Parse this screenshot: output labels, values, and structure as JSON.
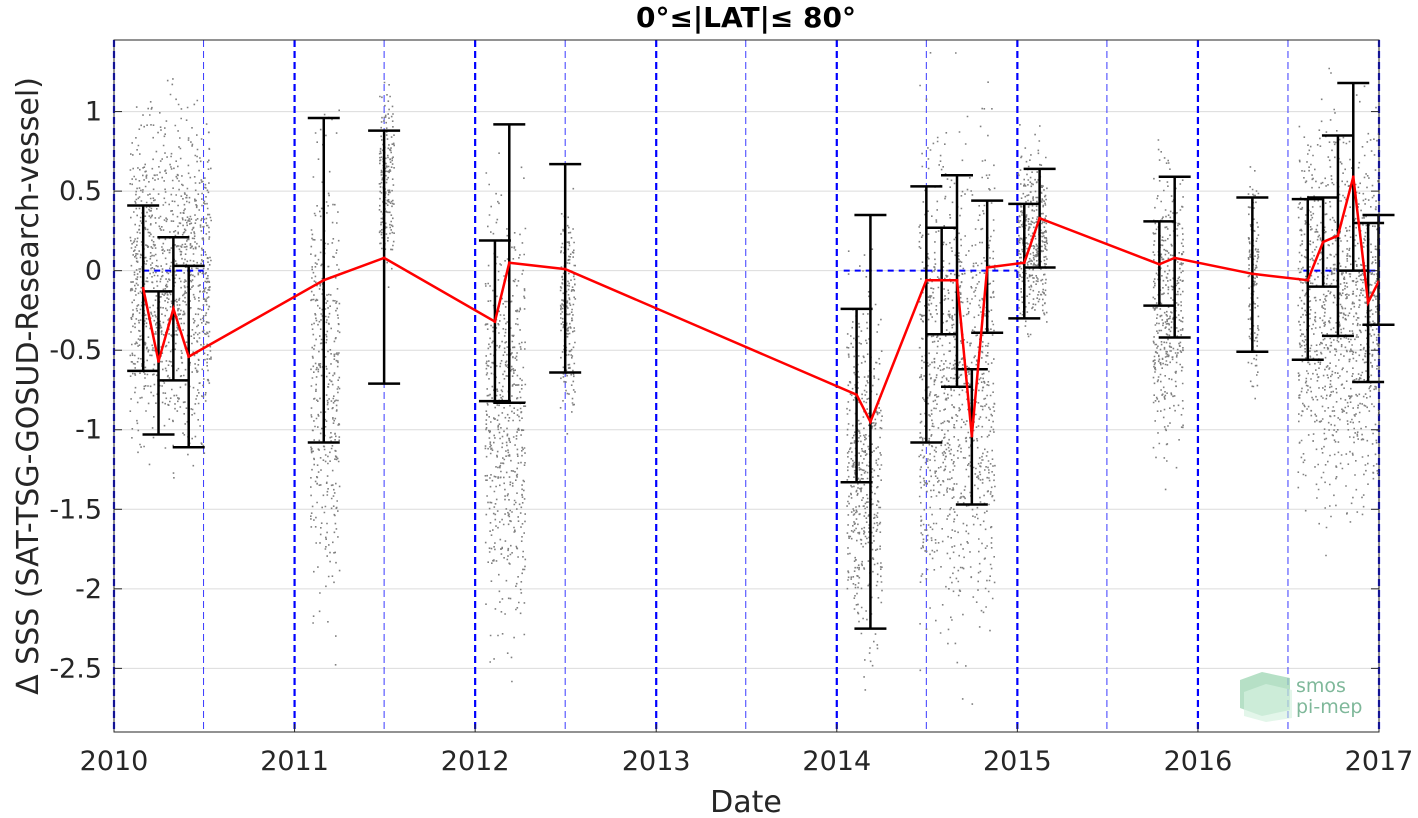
{
  "chart_data": {
    "type": "line",
    "title": "0°≤|LAT|≤ 80°",
    "xlabel": "Date",
    "ylabel": "Δ SSS (SAT-TSG-GOSUD-Research-vessel)",
    "xlim": [
      "2010-01-01",
      "2017-01-01"
    ],
    "ylim": [
      -2.9,
      1.45
    ],
    "x_ticks": [
      "2010",
      "2011",
      "2012",
      "2013",
      "2014",
      "2015",
      "2016",
      "2017"
    ],
    "y_ticks": [
      -2.5,
      -2,
      -1.5,
      -1,
      -0.5,
      0,
      0.5,
      1
    ],
    "y_tick_labels": [
      "-2.5",
      "-2",
      "-1.5",
      "-1",
      "-0.5",
      "0",
      "0.5",
      "1"
    ],
    "grid": "horizontal",
    "year_lines": [
      "2010-01-01",
      "2011-01-01",
      "2012-01-01",
      "2013-01-01",
      "2014-01-01",
      "2015-01-01",
      "2016-01-01",
      "2017-01-01"
    ],
    "half_year_lines": [
      "2010-07-01",
      "2011-07-01",
      "2012-07-01",
      "2013-07-01",
      "2014-07-01",
      "2015-07-01",
      "2016-07-01"
    ],
    "zero_reference_segments": [
      [
        "2010-03-01",
        "2010-07-01"
      ],
      [
        "2014-01-15",
        "2014-07-01"
      ],
      [
        "2014-07-01",
        "2015-01-01"
      ],
      [
        "2016-08-01",
        "2017-01-01"
      ]
    ],
    "series": [
      {
        "color": "#ff0000",
        "points": [
          {
            "date": "2010-03-01",
            "mean": -0.11,
            "low": -0.63,
            "high": 0.41
          },
          {
            "date": "2010-04-01",
            "mean": -0.57,
            "low": -1.03,
            "high": -0.13
          },
          {
            "date": "2010-05-01",
            "mean": -0.24,
            "low": -0.69,
            "high": 0.21
          },
          {
            "date": "2010-06-01",
            "mean": -0.54,
            "low": -1.11,
            "high": 0.03
          },
          {
            "date": "2011-03-01",
            "mean": -0.06,
            "low": -1.08,
            "high": 0.96
          },
          {
            "date": "2011-07-01",
            "mean": 0.08,
            "low": -0.71,
            "high": 0.88
          },
          {
            "date": "2012-02-10",
            "mean": -0.32,
            "low": -0.82,
            "high": 0.19
          },
          {
            "date": "2012-03-10",
            "mean": 0.05,
            "low": -0.83,
            "high": 0.92
          },
          {
            "date": "2012-07-01",
            "mean": 0.01,
            "low": -0.64,
            "high": 0.67
          },
          {
            "date": "2014-02-10",
            "mean": -0.78,
            "low": -1.33,
            "high": -0.24
          },
          {
            "date": "2014-03-10",
            "mean": -0.95,
            "low": -2.25,
            "high": 0.35
          },
          {
            "date": "2014-07-01",
            "mean": -0.06,
            "low": -1.08,
            "high": 0.53
          },
          {
            "date": "2014-08-01",
            "mean": -0.06,
            "low": -0.4,
            "high": 0.27
          },
          {
            "date": "2014-09-01",
            "mean": -0.06,
            "low": -0.73,
            "high": 0.6
          },
          {
            "date": "2014-10-01",
            "mean": -1.04,
            "low": -1.47,
            "high": -0.62
          },
          {
            "date": "2014-11-01",
            "mean": 0.02,
            "low": -0.39,
            "high": 0.44
          },
          {
            "date": "2015-01-15",
            "mean": 0.05,
            "low": -0.3,
            "high": 0.42
          },
          {
            "date": "2015-02-15",
            "mean": 0.33,
            "low": 0.02,
            "high": 0.64
          },
          {
            "date": "2015-10-15",
            "mean": 0.04,
            "low": -0.22,
            "high": 0.31
          },
          {
            "date": "2015-11-15",
            "mean": 0.08,
            "low": -0.42,
            "high": 0.59
          },
          {
            "date": "2016-04-20",
            "mean": -0.02,
            "low": -0.51,
            "high": 0.46
          },
          {
            "date": "2016-08-10",
            "mean": -0.06,
            "low": -0.56,
            "high": 0.45
          },
          {
            "date": "2016-09-10",
            "mean": 0.18,
            "low": -0.1,
            "high": 0.46
          },
          {
            "date": "2016-10-10",
            "mean": 0.22,
            "low": -0.41,
            "high": 0.85
          },
          {
            "date": "2016-11-10",
            "mean": 0.59,
            "low": 0.0,
            "high": 1.18
          },
          {
            "date": "2016-12-10",
            "mean": -0.2,
            "low": -0.7,
            "high": 0.3
          },
          {
            "date": "2016-12-31",
            "mean": -0.07,
            "low": -0.34,
            "high": 0.35
          }
        ]
      }
    ],
    "scatter_color": "#808080",
    "scatter_clusters": [
      {
        "start": "2010-02-01",
        "end": "2010-07-15",
        "min": -1.5,
        "max": 1.4
      },
      {
        "start": "2011-02-01",
        "end": "2011-04-01",
        "min": -2.75,
        "max": 1.4
      },
      {
        "start": "2011-06-20",
        "end": "2011-07-20",
        "min": -0.2,
        "max": 1.4
      },
      {
        "start": "2012-01-20",
        "end": "2012-04-10",
        "min": -2.85,
        "max": 1.0
      },
      {
        "start": "2012-06-20",
        "end": "2012-07-20",
        "min": -1.2,
        "max": 0.7
      },
      {
        "start": "2014-01-20",
        "end": "2014-04-01",
        "min": -2.85,
        "max": 0.35
      },
      {
        "start": "2014-06-15",
        "end": "2014-11-15",
        "min": -2.85,
        "max": 1.45
      },
      {
        "start": "2015-01-01",
        "end": "2015-03-01",
        "min": -0.55,
        "max": 1.0
      },
      {
        "start": "2015-10-01",
        "end": "2015-12-01",
        "min": -1.5,
        "max": 1.0
      },
      {
        "start": "2016-04-10",
        "end": "2016-05-01",
        "min": -1.0,
        "max": 0.9
      },
      {
        "start": "2016-07-20",
        "end": "2016-12-31",
        "min": -1.9,
        "max": 1.45
      }
    ]
  },
  "logo": {
    "line1": "smos",
    "line2": "pi-mep"
  }
}
